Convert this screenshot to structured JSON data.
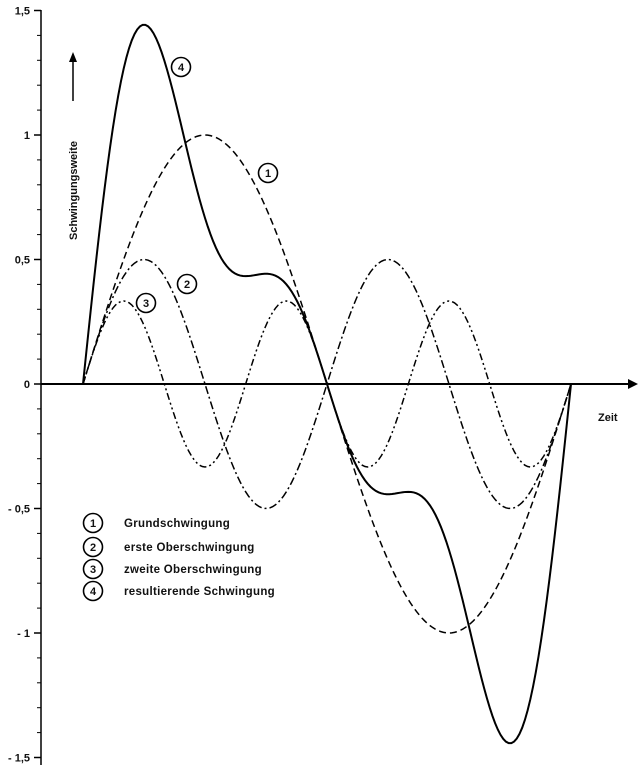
{
  "chart_data": {
    "type": "line",
    "xlabel": "Zeit",
    "ylabel": "Schwingungsweite",
    "ylim": [
      -1.5,
      1.5
    ],
    "yticks": [
      {
        "value": 1.5,
        "label": "1,5"
      },
      {
        "value": 1.0,
        "label": "1"
      },
      {
        "value": 0.5,
        "label": "0,5"
      },
      {
        "value": 0.0,
        "label": "0"
      },
      {
        "value": -0.5,
        "label": "- 0,5"
      },
      {
        "value": -1.0,
        "label": "- 1"
      },
      {
        "value": -1.5,
        "label": "- 1,5"
      }
    ],
    "grid": false,
    "legend_position": "bottom-left",
    "x": [
      0,
      30,
      60,
      90,
      120,
      150,
      180,
      210,
      240,
      270,
      300,
      330,
      360
    ],
    "series": [
      {
        "id": "1",
        "name": "Grundschwingung",
        "style": "dashed",
        "values": [
          0,
          0.5,
          0.87,
          1.0,
          0.87,
          0.5,
          0,
          -0.5,
          -0.87,
          -1.0,
          -0.87,
          -0.5,
          0
        ]
      },
      {
        "id": "2",
        "name": "erste Oberschwingung",
        "style": "dash-dot",
        "values": [
          0,
          0.43,
          0.43,
          0,
          -0.43,
          -0.43,
          0,
          0.43,
          0.43,
          0,
          -0.43,
          -0.43,
          0
        ]
      },
      {
        "id": "3",
        "name": "zweite Oberschwingung",
        "style": "dash-dot-dot",
        "values": [
          0,
          0.33,
          0,
          -0.33,
          0,
          0.33,
          0,
          -0.33,
          0,
          0.33,
          0,
          -0.33,
          0
        ]
      },
      {
        "id": "4",
        "name": "resultierende Schwingung",
        "style": "solid",
        "values": [
          0,
          1.26,
          1.3,
          0.67,
          0.44,
          0.4,
          0,
          -0.4,
          -0.44,
          -0.67,
          -1.3,
          -1.26,
          0
        ]
      }
    ]
  },
  "legend": [
    {
      "badge": "1",
      "label": "Grundschwingung"
    },
    {
      "badge": "2",
      "label": "erste Oberschwingung"
    },
    {
      "badge": "3",
      "label": "zweite Oberschwingung"
    },
    {
      "badge": "4",
      "label": "resultierende Schwingung"
    }
  ],
  "curve_badges": [
    {
      "badge": "1",
      "series": "1"
    },
    {
      "badge": "2",
      "series": "2"
    },
    {
      "badge": "3",
      "series": "3"
    },
    {
      "badge": "4",
      "series": "4"
    }
  ]
}
